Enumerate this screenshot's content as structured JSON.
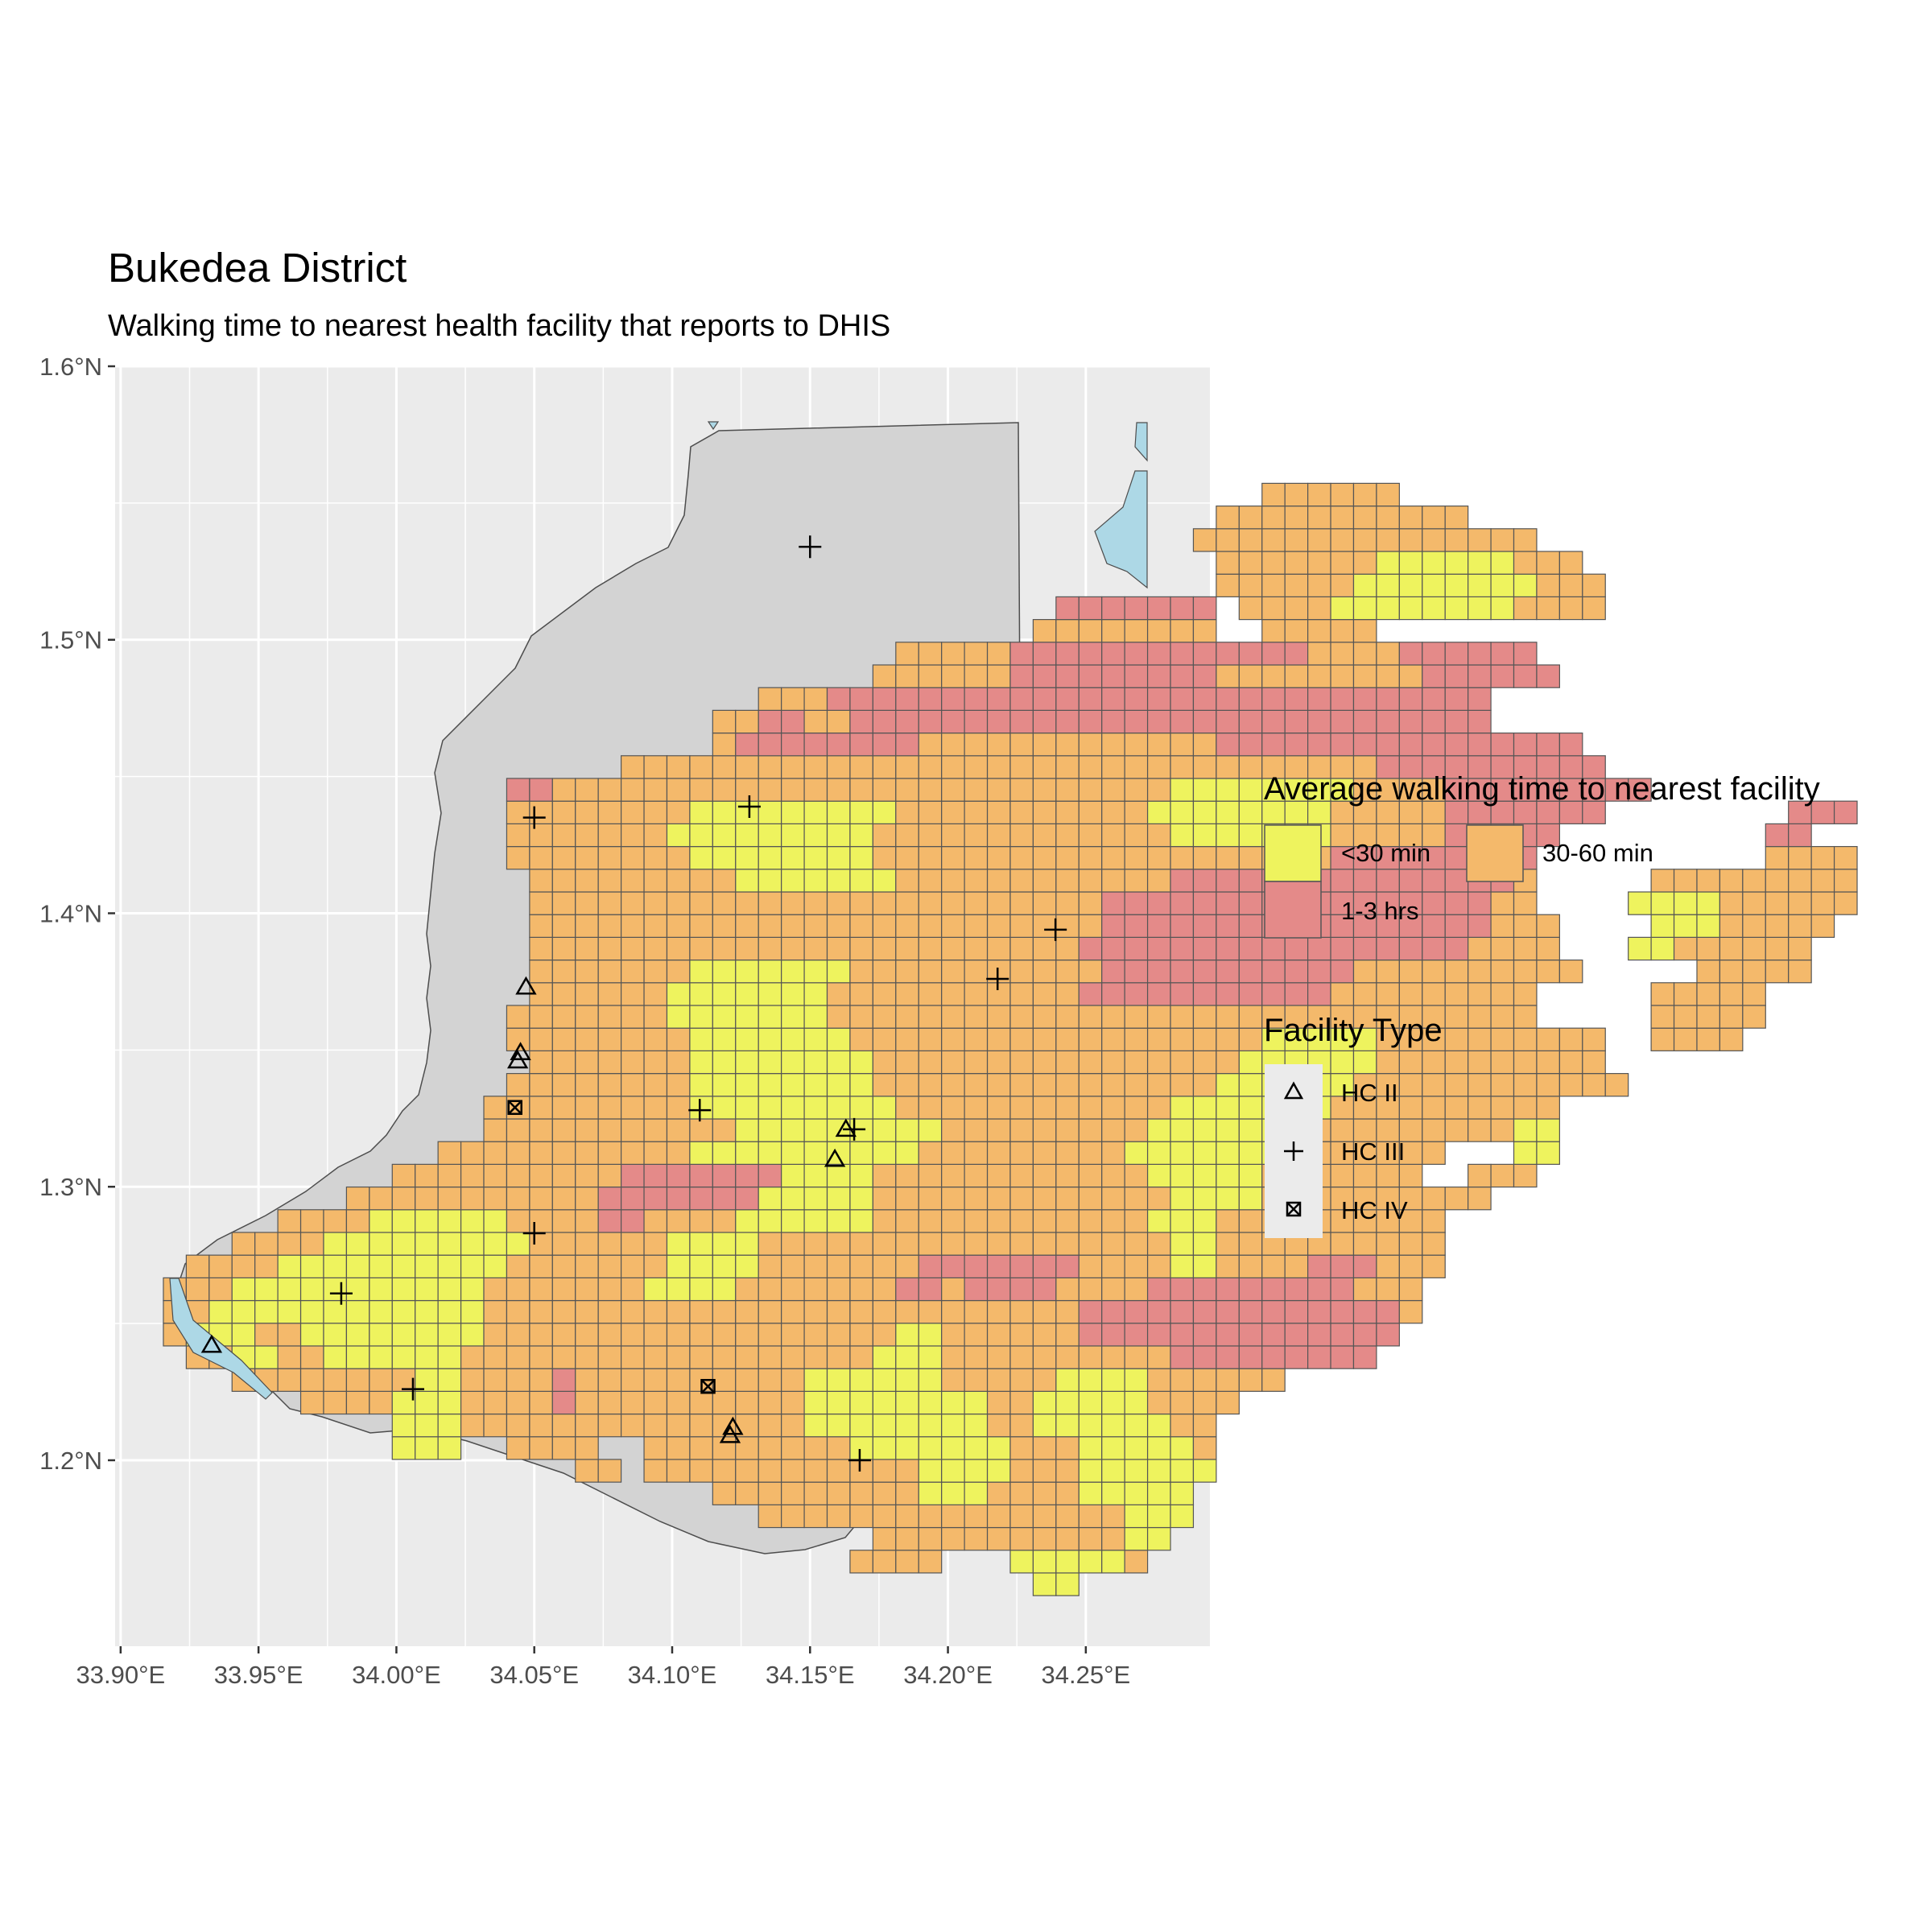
{
  "title": "Bukedea District",
  "subtitle": "Walking time to nearest health facility that reports to DHIS",
  "axes": {
    "x_ticks": [
      "33.90°E",
      "33.95°E",
      "34.00°E",
      "34.05°E",
      "34.10°E",
      "34.15°E",
      "34.20°E",
      "34.25°E"
    ],
    "y_ticks": [
      "1.6°N",
      "1.5°N",
      "1.4°N",
      "1.3°N",
      "1.2°N"
    ],
    "x_values": [
      33.9,
      33.95,
      34.0,
      34.05,
      34.1,
      34.15,
      34.2,
      34.25
    ],
    "y_values": [
      1.6,
      1.5,
      1.4,
      1.3,
      1.2
    ],
    "x_range": [
      33.898,
      34.295
    ],
    "y_range": [
      1.132,
      1.6
    ]
  },
  "legend_walking": {
    "title": "Average walking time to nearest facility",
    "items": [
      {
        "label": "<30 min",
        "color": "#EEF35E"
      },
      {
        "label": "30-60 min",
        "color": "#F4B96B"
      },
      {
        "label": "1-3 hrs",
        "color": "#E48A89"
      }
    ]
  },
  "legend_facility": {
    "title": "Facility Type",
    "items": [
      {
        "label": "HC II",
        "symbol": "triangle"
      },
      {
        "label": "HC III",
        "symbol": "plus"
      },
      {
        "label": "HC IV",
        "symbol": "boxed-x"
      }
    ]
  },
  "colors": {
    "panel": "#EBEBEB",
    "gridline": "#FFFFFF",
    "district_fill": "#D3D3D3",
    "water": "#ADD8E6",
    "cell_border": "#555555"
  },
  "chart_data": {
    "type": "map",
    "cell_size_deg": 0.0083,
    "grid_origin": {
      "lon": 33.9155,
      "lat": 1.1505
    },
    "categories": [
      "<30 min",
      "30-60 min",
      "1-3 hrs"
    ],
    "rows_from_south": [
      "......................................YY..........................",
      "..............................OOOO...YYYYYO........................",
      "...............................OOOOOOOOOOOYY.......................",
      "..........................OOOOOOOOOOOOOOOOYYY.....................",
      "........................OOOOOOOOOYYYOOOOYYYYY.....................",
      "..................OO.OOOOOOOOOOOOYYYYOOOYYYYYY.....................",
      "..........YYY..OOOO..OOOOOOOOOYYYYYYYOOOYYYYYO.....................",
      "..........YYYOOOOOOOOOOOOOOOYYYYYYYYOOYYYYYYOO....................",
      "......OOOOYYYOOOOROOOOOOOOOOYYYYYYYYOOYYYYYOOOO...................",
      "...OOOOOOOOYYOOOOROOOOOOOOOOYYYYYYOOOOOYYYYOOOOOO..................",
      ".OOYYOOYYYYYYOOOOOOOOOOOOOOOOOOYYYOOOOOOOOOORRRRRRRRR.............",
      "OYYYOOYYYYYYYYOOOOOOOOOOOOOOOOOOYYOOOOOORRRRRRRRRRRRRR............",
      "OOYYYYYYYYYYYYOOOOOOOOOOOOOOOOOOOOOOOOOORRRRRRRRRRRRRRO...........",
      "OOOYYYYYYYYYYYOOOOOOOYYYYOOOOOOORRORRRROOOORRRRRRRRROOO...........",
      ".OOOOYYYYYYYYYYOOOOOOOYYYYOOOOOOORRRRRRROOOOYYOOOORRROOO...........",
      "...OOOOYYYYYYYYYOOOOOOYYYYOOOOOOOOOOOOOOOOOOYYOOOOOOOOOO...........",
      ".....OOOOYYYYYYOOOORROOOOYYYYYYOOOOOOOOOOOOYYYOOOOOOOOOO...........",
      "........OOOOOOOOOOORRRRRRRYYYYYOOOOOOOOOOOOOYYYYOOOOOOOOOO..........",
      "..........OOOOOOOOOORRRRRRRYYYYOOOOOOOOOOOOYYYYYOOOOOOO..OOO.......",
      "............OOOOOOOOOOOYYYYYYYYYYOOOOOOOOOYYYYYYYOOOOOOO...YY........",
      "..............OOOOOOOOOOOYYYYYYYYYOOOOOOOOOYYYYYYYOOOOOOOOOYY........",
      "..............OOOOOOOOOYYYYYYYYYOOOOOOOOOOOOYYYYYYYOOOOOOOOOO.......",
      "...............OOOOOOOOYYYYYYYYOOOOOOOOOOOOOOOYYYYYYOOOOOOOOOOOO.......",
      "................OOOOOOOYYYYYYYYOOOOOOOOOOOOOOOOYYYYYYOOOOOOOOOO.......",
      "...............OOOOOOOOYYYYYYYOOOOOOOOOOOOOOOOOOYYYYYOOOOOOOOOO..OOOO...",
      "...............OOOOOOOYYYYYYYOOOOOOOOOOOOOOOOOOOOOOOOOOOOOOO.....OOOOO...",
      "................OOOOOOYYYYYYYOOOOOOOOOOORRRRRRRRRRROOOOOOOOO.....OOOOO...",
      "................OOOOOOOYYYYYYYOOOOOOOOOOORRRRRRRRRRROOOOOOOOOO.....OOOOO..",
      "................OOOOOOOOOOOOOOOOOOOOOOOORRRRRRRRRRRRRRRRROOOO...YYOOOOOO..",
      "................OOOOOOOOOOOOOOOOOOOOOOOOORRRRRRRRRRRRRRRRROOO....YYYOOOOO..",
      "................OOOOOOOOOOOOOOOOOOOOOOOOORRRRRRRRRRRRRRRRROO....YYYYOOOOOO",
      "................OOOOOOOOOYYYYYYYOOOOOOOOOOOORRRRRRRRRRRRRRRO.....OOOOOOOOO",
      "...............OOOOOOOOYYYYYYYYOOOOOOOOOOOOOOOOOOOORRRRRRRRR..........OOOO",
      "...............OOOOOOOYYYYYYYYYOOOOOOOOOOOOOYYYYYYYOOOOORRRRR.........RR.",
      "...............OOOOOOOOYYYYYYYYYOOOOOOOOOOOYYYYYYYYOOOOORRRRRRR........RRR.",
      "...............RROOOOOOOOOOOOOOOOOOOOOOOOOOOYYYYYYYYOOOORRRRRRRRR..........",
      "....................OOOOOOOOOOOOOOOOOOOOOOOOOOOOOOOOORRRRRRRRRR...........",
      "........................ORRRRRRRROOOOOOOOOOOOORRRRRRRRRRRRRRRR............",
      "........................OORROORRRRRRRRRRRRRRRRRRRRRRRRRRRR................",
      "..........................OOORRRRRRRRRRRRRRRRRRRRRRRRRRRRR................",
      "...............................OOOOOORRRRRRRRROOOOOOOOORRRRRR..............",
      "................................OOOOORRRRRRRRRRRRROOOORRRRRR...............",
      "......................................OOOOOOOO..OOOOO.........................",
      ".......................................RRRRRRR.OOOOYYYYYYYYOOOO....................",
      "..............................................OOOOOOYYYYYYYYOOO....................",
      "..............................................OOOOOOOYYYYYYOOO....................",
      ".............................................OOOOOOOOOOOOOOO......................",
      "..............................................OOOOOOOOOOO..........................",
      "................................................OOOOOO............................."
    ],
    "facilities": [
      {
        "type": "HC II",
        "lon": 34.047,
        "lat": 1.373
      },
      {
        "type": "HC II",
        "lon": 34.045,
        "lat": 1.349
      },
      {
        "type": "HC II",
        "lon": 34.044,
        "lat": 1.346
      },
      {
        "type": "HC II",
        "lon": 34.163,
        "lat": 1.321
      },
      {
        "type": "HC II",
        "lon": 34.159,
        "lat": 1.31
      },
      {
        "type": "HC II",
        "lon": 33.933,
        "lat": 1.242
      },
      {
        "type": "HC II",
        "lon": 34.122,
        "lat": 1.212
      },
      {
        "type": "HC II",
        "lon": 34.121,
        "lat": 1.209
      },
      {
        "type": "HC III",
        "lon": 34.15,
        "lat": 1.534
      },
      {
        "type": "HC III",
        "lon": 34.05,
        "lat": 1.435
      },
      {
        "type": "HC III",
        "lon": 34.128,
        "lat": 1.439
      },
      {
        "type": "HC III",
        "lon": 34.239,
        "lat": 1.394
      },
      {
        "type": "HC III",
        "lon": 34.218,
        "lat": 1.376
      },
      {
        "type": "HC III",
        "lon": 34.11,
        "lat": 1.328
      },
      {
        "type": "HC III",
        "lon": 34.166,
        "lat": 1.321
      },
      {
        "type": "HC III",
        "lon": 34.05,
        "lat": 1.283
      },
      {
        "type": "HC III",
        "lon": 33.98,
        "lat": 1.261
      },
      {
        "type": "HC III",
        "lon": 34.006,
        "lat": 1.226
      },
      {
        "type": "HC III",
        "lon": 34.168,
        "lat": 1.2
      },
      {
        "type": "HC IV",
        "lon": 34.043,
        "lat": 1.329
      },
      {
        "type": "HC IV",
        "lon": 34.113,
        "lat": 1.227
      }
    ]
  }
}
